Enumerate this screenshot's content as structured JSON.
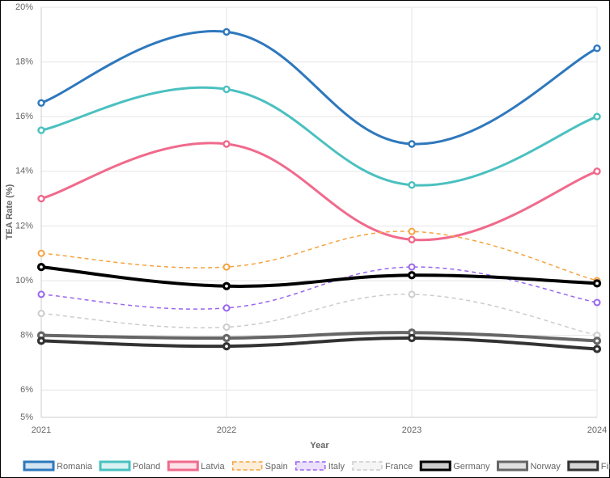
{
  "chart_data": {
    "type": "line",
    "x_label": "Year",
    "y_label": "TEA Rate (%)",
    "categories": [
      "2021",
      "2022",
      "2023",
      "2024"
    ],
    "ylim": [
      5,
      20
    ],
    "yticks": [
      {
        "value": 5,
        "label": "5%"
      },
      {
        "value": 6,
        "label": "6%"
      },
      {
        "value": 8,
        "label": "8%"
      },
      {
        "value": 10,
        "label": "10%"
      },
      {
        "value": 12,
        "label": "12%"
      },
      {
        "value": 14,
        "label": "14%"
      },
      {
        "value": 16,
        "label": "16%"
      },
      {
        "value": 18,
        "label": "18%"
      },
      {
        "value": 20,
        "label": "20%"
      }
    ],
    "grid": true,
    "legend": "bottom",
    "series": [
      {
        "name": "Romania",
        "color": "#2e78bd",
        "dashed": false,
        "line_width": 3,
        "values": [
          16.5,
          19.1,
          15,
          18.5
        ]
      },
      {
        "name": "Poland",
        "color": "#4bc0c0",
        "dashed": false,
        "line_width": 3,
        "values": [
          15.5,
          17,
          13.5,
          16
        ]
      },
      {
        "name": "Latvia",
        "color": "#f06a8c",
        "dashed": false,
        "line_width": 3,
        "values": [
          13,
          15,
          11.5,
          14
        ]
      },
      {
        "name": "Spain",
        "color": "#f5a33f",
        "dashed": true,
        "line_width": 1.5,
        "values": [
          11,
          10.5,
          11.8,
          10
        ]
      },
      {
        "name": "Italy",
        "color": "#9966ee",
        "dashed": true,
        "line_width": 1.5,
        "values": [
          9.5,
          9,
          10.5,
          9.2
        ]
      },
      {
        "name": "France",
        "color": "#cccccc",
        "dashed": true,
        "line_width": 1.5,
        "values": [
          8.8,
          8.3,
          9.5,
          8
        ]
      },
      {
        "name": "Germany",
        "color": "#000000",
        "dashed": false,
        "line_width": 4,
        "values": [
          10.5,
          9.8,
          10.2,
          9.9
        ]
      },
      {
        "name": "Norway",
        "color": "#666666",
        "dashed": false,
        "line_width": 4,
        "values": [
          8,
          7.9,
          8.1,
          7.8
        ]
      },
      {
        "name": "Finland",
        "color": "#333333",
        "dashed": false,
        "line_width": 4,
        "values": [
          7.8,
          7.6,
          7.9,
          7.5
        ]
      }
    ]
  }
}
